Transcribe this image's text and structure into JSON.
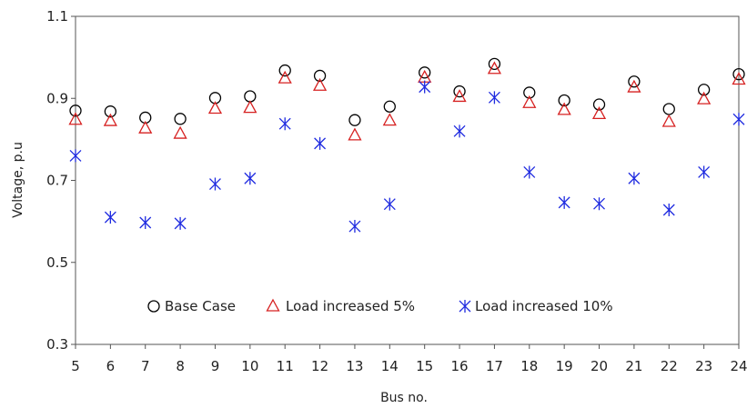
{
  "chart_data": {
    "type": "scatter",
    "title": "",
    "xlabel": "Bus no.",
    "ylabel": "Voltage, p.u",
    "ylim": [
      0.3,
      1.1
    ],
    "yticks": [
      0.3,
      0.5,
      0.7,
      0.9,
      1.1
    ],
    "ytick_labels": [
      "0.3",
      "0.5",
      "0.7",
      "0.9",
      "1.1"
    ],
    "x": [
      5,
      6,
      7,
      8,
      9,
      10,
      11,
      12,
      13,
      14,
      15,
      16,
      17,
      18,
      19,
      20,
      21,
      22,
      23,
      24
    ],
    "xtick_labels": [
      "5",
      "6",
      "7",
      "8",
      "9",
      "10",
      "11",
      "12",
      "13",
      "14",
      "15",
      "16",
      "17",
      "18",
      "19",
      "20",
      "21",
      "22",
      "23",
      "24"
    ],
    "grid": false,
    "legend_position": "lower-center",
    "series": [
      {
        "name": "Base Case",
        "marker": "circle",
        "color": "#000000",
        "values": [
          0.87,
          0.868,
          0.853,
          0.85,
          0.901,
          0.905,
          0.968,
          0.955,
          0.847,
          0.88,
          0.963,
          0.917,
          0.984,
          0.914,
          0.895,
          0.885,
          0.941,
          0.874,
          0.921,
          0.959
        ]
      },
      {
        "name": "Load increased 5%",
        "marker": "triangle",
        "color": "#d62020",
        "values": [
          0.848,
          0.845,
          0.827,
          0.814,
          0.875,
          0.877,
          0.949,
          0.931,
          0.81,
          0.846,
          0.951,
          0.904,
          0.972,
          0.889,
          0.872,
          0.862,
          0.927,
          0.843,
          0.898,
          0.946
        ]
      },
      {
        "name": "Load increased 10%",
        "marker": "asterisk",
        "color": "#1f2be0",
        "values": [
          0.76,
          0.61,
          0.597,
          0.595,
          0.691,
          0.705,
          0.838,
          0.79,
          0.588,
          0.642,
          0.928,
          0.82,
          0.902,
          0.72,
          0.646,
          0.643,
          0.705,
          0.628,
          0.72,
          0.849
        ]
      }
    ]
  }
}
